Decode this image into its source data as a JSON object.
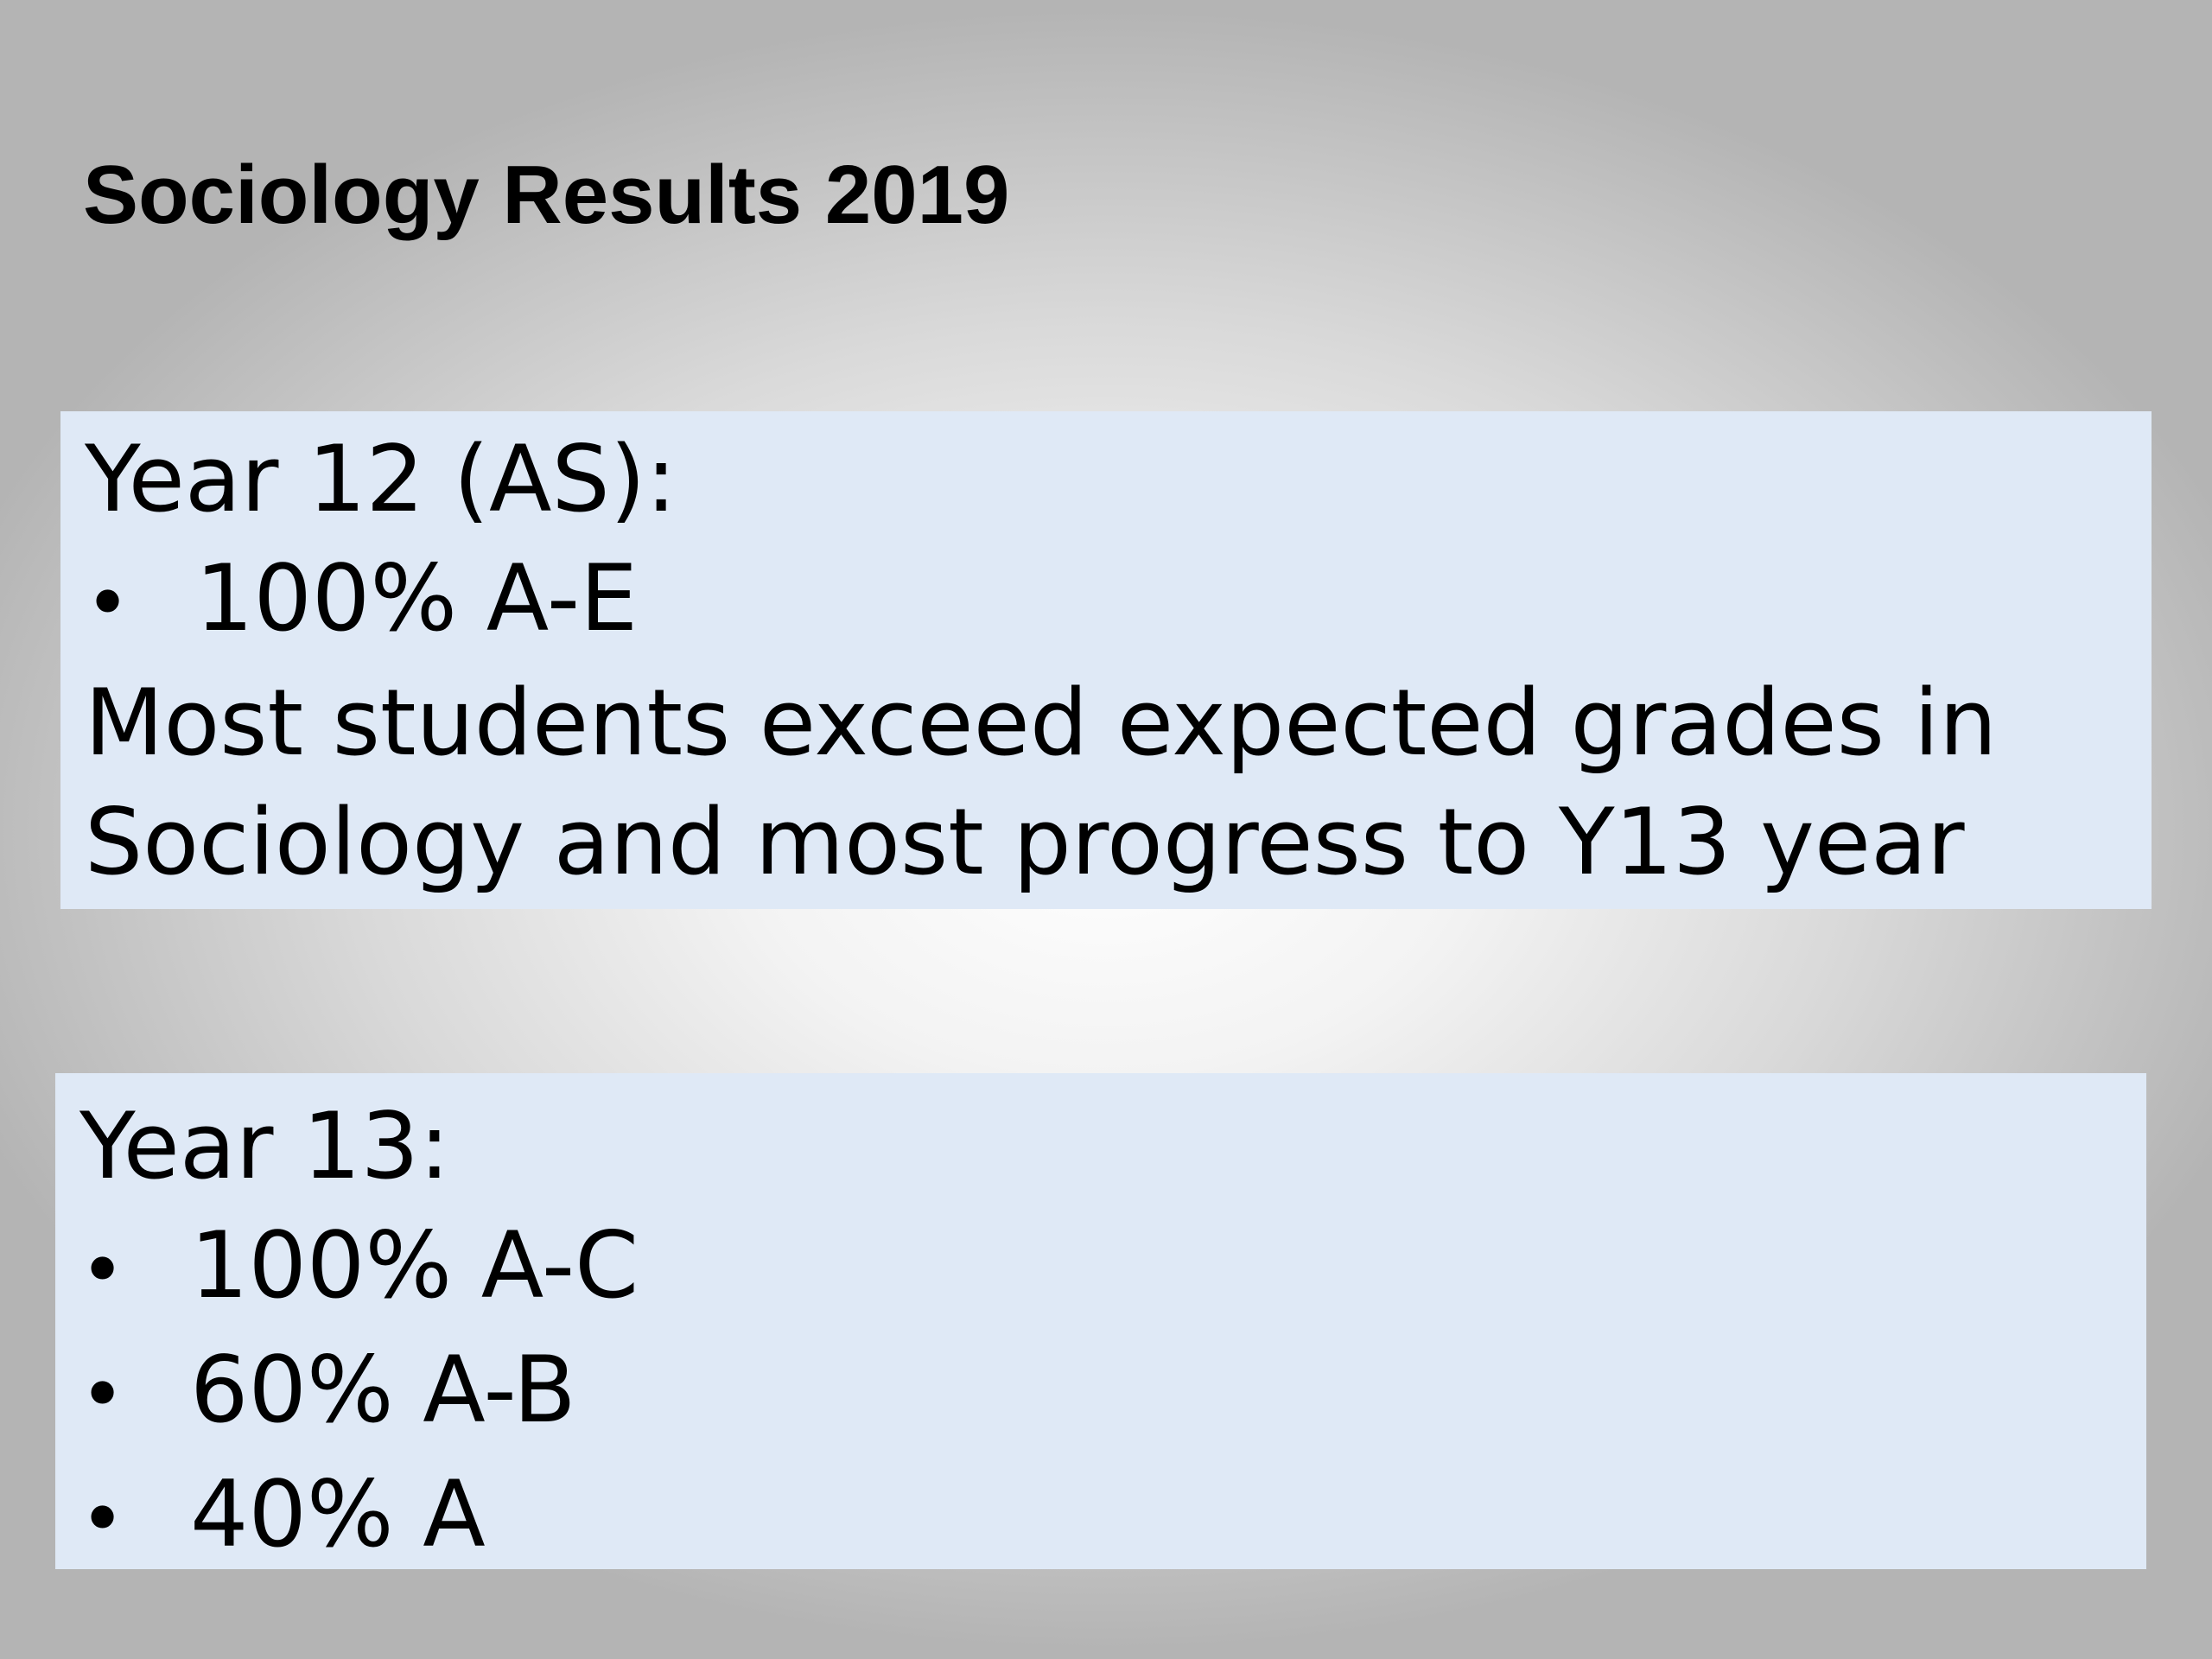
{
  "title": "Sociology Results 2019",
  "year12": {
    "heading": "Year 12 (AS):",
    "bullet_symbol": "•",
    "bullets": [
      "100% A-E"
    ],
    "note_line1": "Most students exceed expected grades in",
    "note_line2": "Sociology and most progress to Y13 year"
  },
  "year13": {
    "heading": "Year 13:",
    "bullet_symbol": "•",
    "bullets": [
      "100% A-C",
      "60% A-B",
      "40% A"
    ]
  },
  "colors": {
    "box_fill": "#dfe9f6",
    "text": "#000000",
    "background_center": "#ffffff",
    "background_edge": "#b4b4b4"
  }
}
